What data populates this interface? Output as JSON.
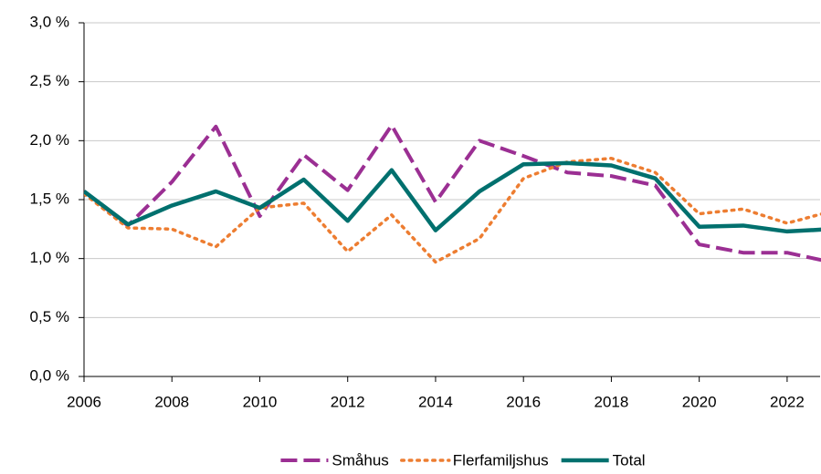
{
  "chart_data": {
    "type": "line",
    "x": [
      2006,
      2007,
      2008,
      2009,
      2010,
      2011,
      2012,
      2013,
      2014,
      2015,
      2016,
      2017,
      2018,
      2019,
      2020,
      2021,
      2022,
      2023
    ],
    "series": [
      {
        "name": "Småhus",
        "color": "#9b2f93",
        "style": "dashed",
        "values": [
          1.57,
          1.28,
          1.65,
          2.12,
          1.36,
          1.88,
          1.58,
          2.13,
          1.48,
          2.0,
          1.87,
          1.73,
          1.7,
          1.62,
          1.12,
          1.05,
          1.05,
          0.97
        ]
      },
      {
        "name": "Flerfamiljshus",
        "color": "#ed7d31",
        "style": "dotted",
        "values": [
          1.55,
          1.26,
          1.25,
          1.1,
          1.43,
          1.47,
          1.06,
          1.37,
          0.97,
          1.17,
          1.68,
          1.82,
          1.85,
          1.73,
          1.38,
          1.42,
          1.3,
          1.4
        ]
      },
      {
        "name": "Total",
        "color": "#00706e",
        "style": "solid",
        "values": [
          1.57,
          1.29,
          1.45,
          1.57,
          1.43,
          1.67,
          1.32,
          1.75,
          1.24,
          1.57,
          1.8,
          1.81,
          1.79,
          1.68,
          1.27,
          1.28,
          1.23,
          1.25
        ]
      }
    ],
    "xlim": [
      2006,
      2022.75
    ],
    "xticks": [
      2006,
      2008,
      2010,
      2012,
      2014,
      2016,
      2018,
      2020,
      2022
    ],
    "ylim": [
      0,
      3.0
    ],
    "yticks": [
      {
        "value": 0,
        "label": "0,0 %"
      },
      {
        "value": 0.5,
        "label": "0,5 %"
      },
      {
        "value": 1.0,
        "label": "1,0 %"
      },
      {
        "value": 1.5,
        "label": "1,5 %"
      },
      {
        "value": 2.0,
        "label": "2,0 %"
      },
      {
        "value": 2.5,
        "label": "2,5 %"
      },
      {
        "value": 3.0,
        "label": "3,0 %"
      }
    ],
    "grid": true,
    "legend": "bottom"
  }
}
